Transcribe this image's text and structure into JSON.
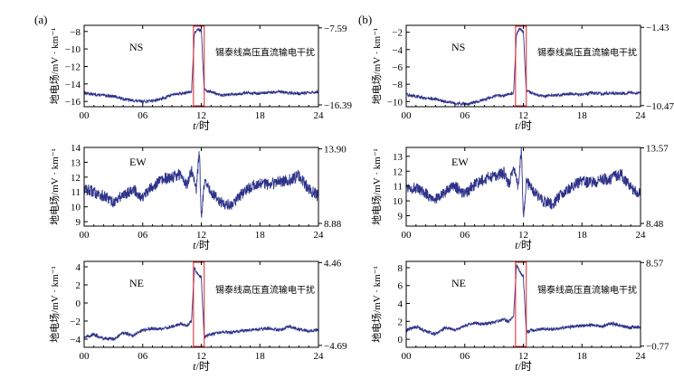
{
  "figure": {
    "panel_labels": [
      "(a)",
      "(b)"
    ]
  },
  "chart_data": [
    {
      "type": "line",
      "column": 0,
      "row": 0,
      "component": "NS",
      "annotation": "锡泰线高压直流输电干扰",
      "ylabel": "地电场/mV · km⁻¹",
      "xlabel_italic": "t",
      "xlabel_rest": "/时",
      "x_ticks": [
        "00",
        "06",
        "12",
        "18",
        "24"
      ],
      "y_ticks": [
        -8,
        -10,
        -12,
        -14,
        -16
      ],
      "ylim": [
        -16.6,
        -7.3
      ],
      "right_labels": [
        "-7.59",
        "-16.39"
      ],
      "right_values": [
        -7.59,
        -16.39
      ],
      "interference_window": [
        11.2,
        12.3
      ],
      "series": [
        {
          "x": [
            0,
            1,
            2,
            3,
            4,
            5,
            6,
            7,
            8,
            9,
            10,
            10.5,
            11,
            11.3,
            11.6,
            12,
            12.3,
            12.6,
            13,
            14,
            15,
            16,
            17,
            18,
            19,
            20,
            21,
            22,
            23,
            24
          ],
          "y": [
            -15.0,
            -15.2,
            -15.3,
            -15.4,
            -15.7,
            -15.9,
            -16.0,
            -15.9,
            -15.7,
            -15.2,
            -15.1,
            -15.0,
            -14.9,
            -8.2,
            -7.7,
            -7.9,
            -14.6,
            -14.8,
            -14.9,
            -15.3,
            -15.2,
            -15.1,
            -15.0,
            -15.1,
            -15.0,
            -14.9,
            -15.0,
            -15.1,
            -15.0,
            -14.9
          ]
        }
      ]
    },
    {
      "type": "line",
      "column": 0,
      "row": 1,
      "component": "EW",
      "annotation": "",
      "ylabel": "地电场/mV · km⁻¹",
      "xlabel_italic": "t",
      "xlabel_rest": "/时",
      "x_ticks": [
        "00",
        "06",
        "12",
        "18",
        "24"
      ],
      "y_ticks": [
        14,
        13,
        12,
        11,
        10,
        9
      ],
      "ylim": [
        8.7,
        14.0
      ],
      "right_labels": [
        "13.90",
        "8.88"
      ],
      "right_values": [
        13.9,
        8.88
      ],
      "interference_window": null,
      "series": [
        {
          "x": [
            0,
            1,
            2,
            3,
            4,
            5,
            6,
            7,
            8,
            9,
            10,
            10.5,
            11,
            11.5,
            11.8,
            12,
            12.3,
            13,
            14,
            15,
            16,
            17,
            18,
            19,
            20,
            21,
            22,
            23,
            24
          ],
          "y": [
            11.2,
            11.0,
            10.7,
            10.3,
            10.8,
            11.2,
            10.6,
            11.4,
            11.8,
            12.0,
            12.2,
            11.4,
            12.5,
            11.2,
            13.9,
            9.2,
            11.6,
            11.0,
            10.3,
            10.1,
            10.8,
            11.3,
            11.6,
            11.5,
            11.7,
            11.8,
            12.1,
            11.2,
            10.7
          ]
        }
      ]
    },
    {
      "type": "line",
      "column": 0,
      "row": 2,
      "component": "NE",
      "annotation": "锡泰线高压直流输电干扰",
      "ylabel": "地电场/mV · km⁻¹",
      "xlabel_italic": "t",
      "xlabel_rest": "/时",
      "x_ticks": [
        "00",
        "06",
        "12",
        "18",
        "24"
      ],
      "y_ticks": [
        4,
        2,
        0,
        -2,
        -4
      ],
      "ylim": [
        -4.9,
        4.6
      ],
      "right_labels": [
        "4.46",
        "-4.69"
      ],
      "right_values": [
        4.46,
        -4.69
      ],
      "interference_window": [
        11.2,
        12.3
      ],
      "series": [
        {
          "x": [
            0,
            1,
            2,
            3,
            4,
            5,
            6,
            7,
            8,
            9,
            10,
            10.5,
            11,
            11.3,
            11.6,
            12,
            12.3,
            12.6,
            13,
            14,
            15,
            16,
            17,
            18,
            19,
            20,
            21,
            22,
            23,
            24
          ],
          "y": [
            -3.8,
            -3.5,
            -3.9,
            -4.0,
            -3.3,
            -3.6,
            -3.0,
            -2.8,
            -2.9,
            -2.6,
            -2.3,
            -2.5,
            -2.0,
            3.9,
            3.3,
            2.8,
            -3.8,
            -3.6,
            -3.5,
            -3.2,
            -3.3,
            -3.1,
            -3.0,
            -2.9,
            -2.8,
            -3.0,
            -2.6,
            -2.9,
            -3.1,
            -3.0
          ]
        }
      ]
    },
    {
      "type": "line",
      "column": 1,
      "row": 0,
      "component": "NS",
      "annotation": "锡泰线高压直流输电干扰",
      "ylabel": "地电场/mV · km⁻¹",
      "xlabel_italic": "t",
      "xlabel_rest": "/时",
      "x_ticks": [
        "00",
        "06",
        "12",
        "18",
        "24"
      ],
      "y_ticks": [
        -2,
        -4,
        -6,
        -8,
        -10
      ],
      "ylim": [
        -10.6,
        -1.2
      ],
      "right_labels": [
        "-1.43",
        "-10.47"
      ],
      "right_values": [
        -1.43,
        -10.47
      ],
      "interference_window": [
        11.2,
        12.3
      ],
      "series": [
        {
          "x": [
            0,
            1,
            2,
            3,
            4,
            5,
            6,
            7,
            8,
            9,
            10,
            10.5,
            11,
            11.3,
            11.6,
            12,
            12.3,
            12.6,
            13,
            14,
            15,
            16,
            17,
            18,
            19,
            20,
            21,
            22,
            23,
            24
          ],
          "y": [
            -9.2,
            -9.4,
            -9.6,
            -9.7,
            -10.0,
            -10.2,
            -10.3,
            -10.1,
            -9.8,
            -9.4,
            -9.3,
            -9.2,
            -9.0,
            -2.2,
            -1.6,
            -2.0,
            -8.8,
            -8.9,
            -9.1,
            -9.4,
            -9.3,
            -9.2,
            -9.1,
            -9.2,
            -9.0,
            -9.1,
            -9.0,
            -9.1,
            -9.0,
            -9.0
          ]
        }
      ]
    },
    {
      "type": "line",
      "column": 1,
      "row": 1,
      "component": "EW",
      "annotation": "",
      "ylabel": "地电场/mV · km⁻¹",
      "xlabel_italic": "t",
      "xlabel_rest": "/时",
      "x_ticks": [
        "00",
        "06",
        "12",
        "18",
        "24"
      ],
      "y_ticks": [
        13,
        12,
        11,
        10,
        9
      ],
      "ylim": [
        8.3,
        13.6
      ],
      "right_labels": [
        "13.57",
        "8.48"
      ],
      "right_values": [
        13.57,
        8.48
      ],
      "interference_window": null,
      "series": [
        {
          "x": [
            0,
            1,
            2,
            3,
            4,
            5,
            6,
            7,
            8,
            9,
            10,
            10.5,
            11,
            11.5,
            11.8,
            12,
            12.3,
            13,
            14,
            15,
            16,
            17,
            18,
            19,
            20,
            21,
            22,
            23,
            24
          ],
          "y": [
            11.0,
            10.8,
            10.5,
            10.1,
            10.6,
            11.0,
            10.4,
            11.1,
            11.5,
            11.7,
            11.9,
            11.1,
            12.2,
            10.9,
            13.5,
            8.8,
            11.3,
            10.7,
            10.0,
            9.8,
            10.5,
            11.0,
            11.3,
            11.2,
            11.4,
            11.5,
            11.8,
            10.9,
            10.4
          ]
        }
      ]
    },
    {
      "type": "line",
      "column": 1,
      "row": 2,
      "component": "NE",
      "annotation": "锡泰线高压直流输电干扰",
      "ylabel": "地电场/mV · km⁻¹",
      "xlabel_italic": "t",
      "xlabel_rest": "/时",
      "x_ticks": [
        "00",
        "06",
        "12",
        "18",
        "24"
      ],
      "y_ticks": [
        8,
        6,
        4,
        2,
        0
      ],
      "ylim": [
        -0.9,
        8.7
      ],
      "right_labels": [
        "8.57",
        "-0.77"
      ],
      "right_values": [
        8.57,
        -0.77
      ],
      "interference_window": [
        11.2,
        12.3
      ],
      "series": [
        {
          "x": [
            0,
            1,
            2,
            3,
            4,
            5,
            6,
            7,
            8,
            9,
            10,
            10.5,
            11,
            11.3,
            11.6,
            12,
            12.3,
            12.6,
            13,
            14,
            15,
            16,
            17,
            18,
            19,
            20,
            21,
            22,
            23,
            24
          ],
          "y": [
            1.0,
            1.4,
            0.9,
            0.6,
            1.3,
            1.0,
            1.5,
            1.8,
            1.7,
            1.9,
            2.2,
            2.0,
            2.5,
            8.3,
            7.6,
            7.0,
            0.8,
            0.9,
            1.0,
            1.2,
            1.1,
            1.3,
            1.4,
            1.5,
            1.6,
            1.4,
            1.8,
            1.5,
            1.3,
            1.4
          ]
        }
      ]
    }
  ]
}
